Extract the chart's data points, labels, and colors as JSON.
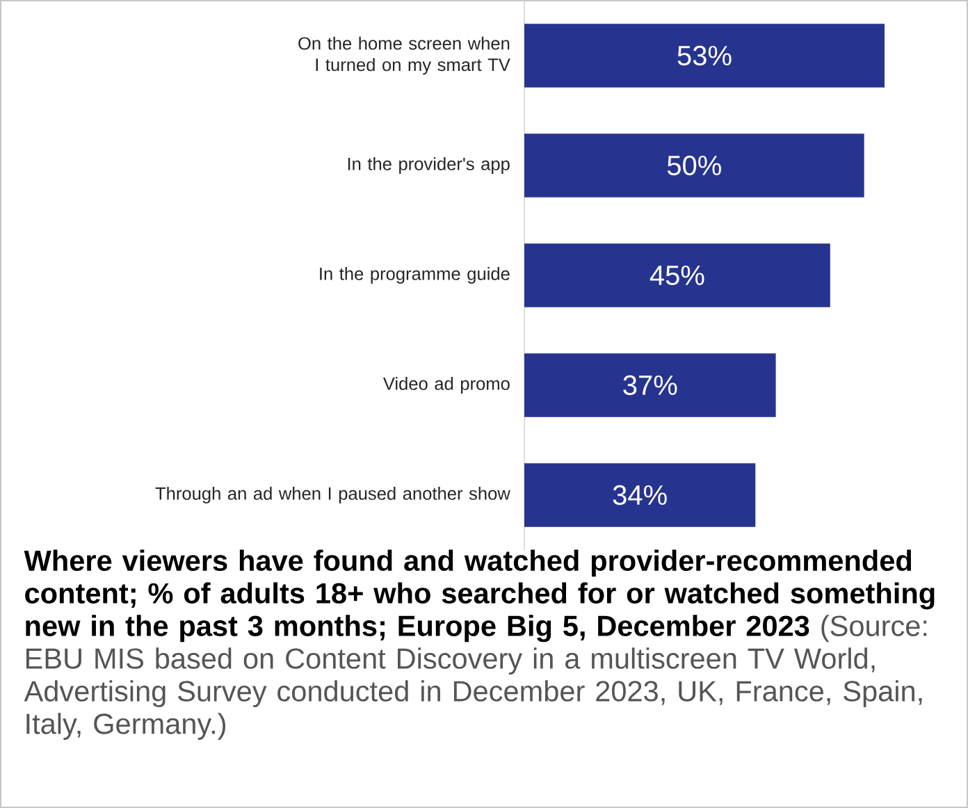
{
  "chart_data": {
    "type": "bar",
    "orientation": "horizontal",
    "title": "Where viewers have found and watched provider-recommended content; % of adults 18+ who searched for or watched something new in the past 3 months; Europe Big 5, December 2023",
    "annotations": [
      "(Source: EBU MIS based on Content Discovery in a multiscreen TV World, Advertising Survey conducted in December 2023, UK, France, Spain, Italy, Germany.)"
    ],
    "categories": [
      "On the home screen when I turned on my smart TV",
      "In the provider's app",
      "In the programme guide",
      "Video ad promo",
      "Through an ad when I paused another show"
    ],
    "values": [
      53,
      50,
      45,
      37,
      34
    ],
    "value_labels": [
      "53%",
      "50%",
      "45%",
      "37%",
      "34%"
    ],
    "color": "#27348f"
  }
}
